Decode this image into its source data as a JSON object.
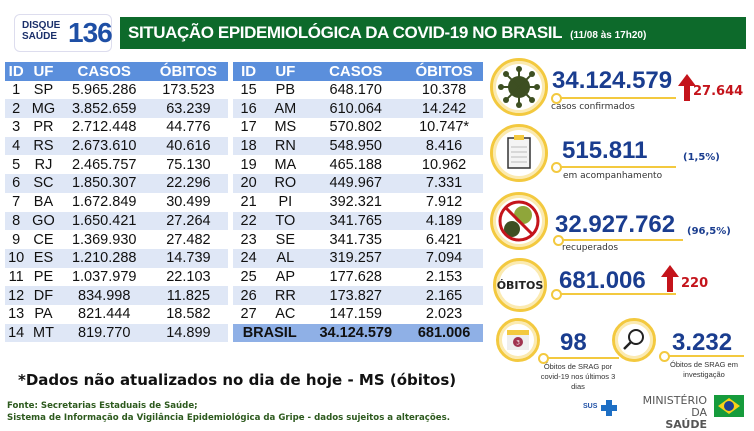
{
  "header": {
    "logo_line1": "DISQUE",
    "logo_line2": "SAÚDE",
    "logo_number": "136",
    "title": "SITUAÇÃO EPIDEMIOLÓGICA DA COVID-19 NO BRASIL",
    "date": "(11/08 às 17h20)"
  },
  "table": {
    "columns": [
      "ID",
      "UF",
      "CASOS",
      "ÓBITOS"
    ],
    "left_rows": [
      [
        "1",
        "SP",
        "5.965.286",
        "173.523"
      ],
      [
        "2",
        "MG",
        "3.852.659",
        "63.239"
      ],
      [
        "3",
        "PR",
        "2.712.448",
        "44.776"
      ],
      [
        "4",
        "RS",
        "2.673.610",
        "40.616"
      ],
      [
        "5",
        "RJ",
        "2.465.757",
        "75.130"
      ],
      [
        "6",
        "SC",
        "1.850.307",
        "22.296"
      ],
      [
        "7",
        "BA",
        "1.672.849",
        "30.499"
      ],
      [
        "8",
        "GO",
        "1.650.421",
        "27.264"
      ],
      [
        "9",
        "CE",
        "1.369.930",
        "27.482"
      ],
      [
        "10",
        "ES",
        "1.210.288",
        "14.739"
      ],
      [
        "11",
        "PE",
        "1.037.979",
        "22.103"
      ],
      [
        "12",
        "DF",
        "834.998",
        "11.825"
      ],
      [
        "13",
        "PA",
        "821.444",
        "18.582"
      ],
      [
        "14",
        "MT",
        "819.770",
        "14.899"
      ]
    ],
    "right_rows": [
      [
        "15",
        "PB",
        "648.170",
        "10.378"
      ],
      [
        "16",
        "AM",
        "610.064",
        "14.242"
      ],
      [
        "17",
        "MS",
        "570.802",
        "10.747*"
      ],
      [
        "18",
        "RN",
        "548.950",
        "8.416"
      ],
      [
        "19",
        "MA",
        "465.188",
        "10.962"
      ],
      [
        "20",
        "RO",
        "449.967",
        "7.331"
      ],
      [
        "21",
        "PI",
        "392.321",
        "7.912"
      ],
      [
        "22",
        "TO",
        "341.765",
        "4.189"
      ],
      [
        "23",
        "SE",
        "341.735",
        "6.421"
      ],
      [
        "24",
        "AL",
        "319.257",
        "7.094"
      ],
      [
        "25",
        "AP",
        "177.628",
        "2.153"
      ],
      [
        "26",
        "RR",
        "173.827",
        "2.165"
      ],
      [
        "27",
        "AC",
        "147.159",
        "2.023"
      ]
    ],
    "total": {
      "label": "BRASIL",
      "casos": "34.124.579",
      "obitos": "681.006"
    }
  },
  "stats": {
    "confirmed": {
      "value": "34.124.579",
      "delta": "27.644",
      "label": "casos confirmados",
      "icon": "virus-icon"
    },
    "monitoring": {
      "value": "515.811",
      "pct": "(1,5%)",
      "label": "em acompanhamento",
      "icon": "clipboard-icon"
    },
    "recovered": {
      "value": "32.927.762",
      "pct": "(96,5%)",
      "label": "recuperados",
      "icon": "no-virus-icon"
    },
    "deaths": {
      "badge": "ÓBITOS",
      "value": "681.006",
      "delta": "220"
    },
    "srag_recent": {
      "value": "98",
      "label": "Óbitos de SRAG por covid-19 nos últimos 3 dias",
      "calendar": "3",
      "icon": "calendar-icon"
    },
    "srag_investigation": {
      "value": "3.232",
      "label": "Óbitos de SRAG em investigação",
      "icon": "magnifier-icon"
    }
  },
  "footer": {
    "note": "*Dados não atualizados no dia de hoje - MS (óbitos)",
    "source1": "Fonte: Secretarias Estaduais de Saúde;",
    "source2": "Sistema de Informação da Vigilância Epidemiológica da Gripe - dados sujeitos a alterações.",
    "sus": "SUS",
    "ministry1": "MINISTÉRIO DA",
    "ministry2": "SAÚDE"
  },
  "colors": {
    "green": "#0d6a2b",
    "blue_header": "#5b8fdc",
    "navy": "#1a3d8f",
    "red": "#c4141b",
    "yellow": "#f3c93f"
  }
}
